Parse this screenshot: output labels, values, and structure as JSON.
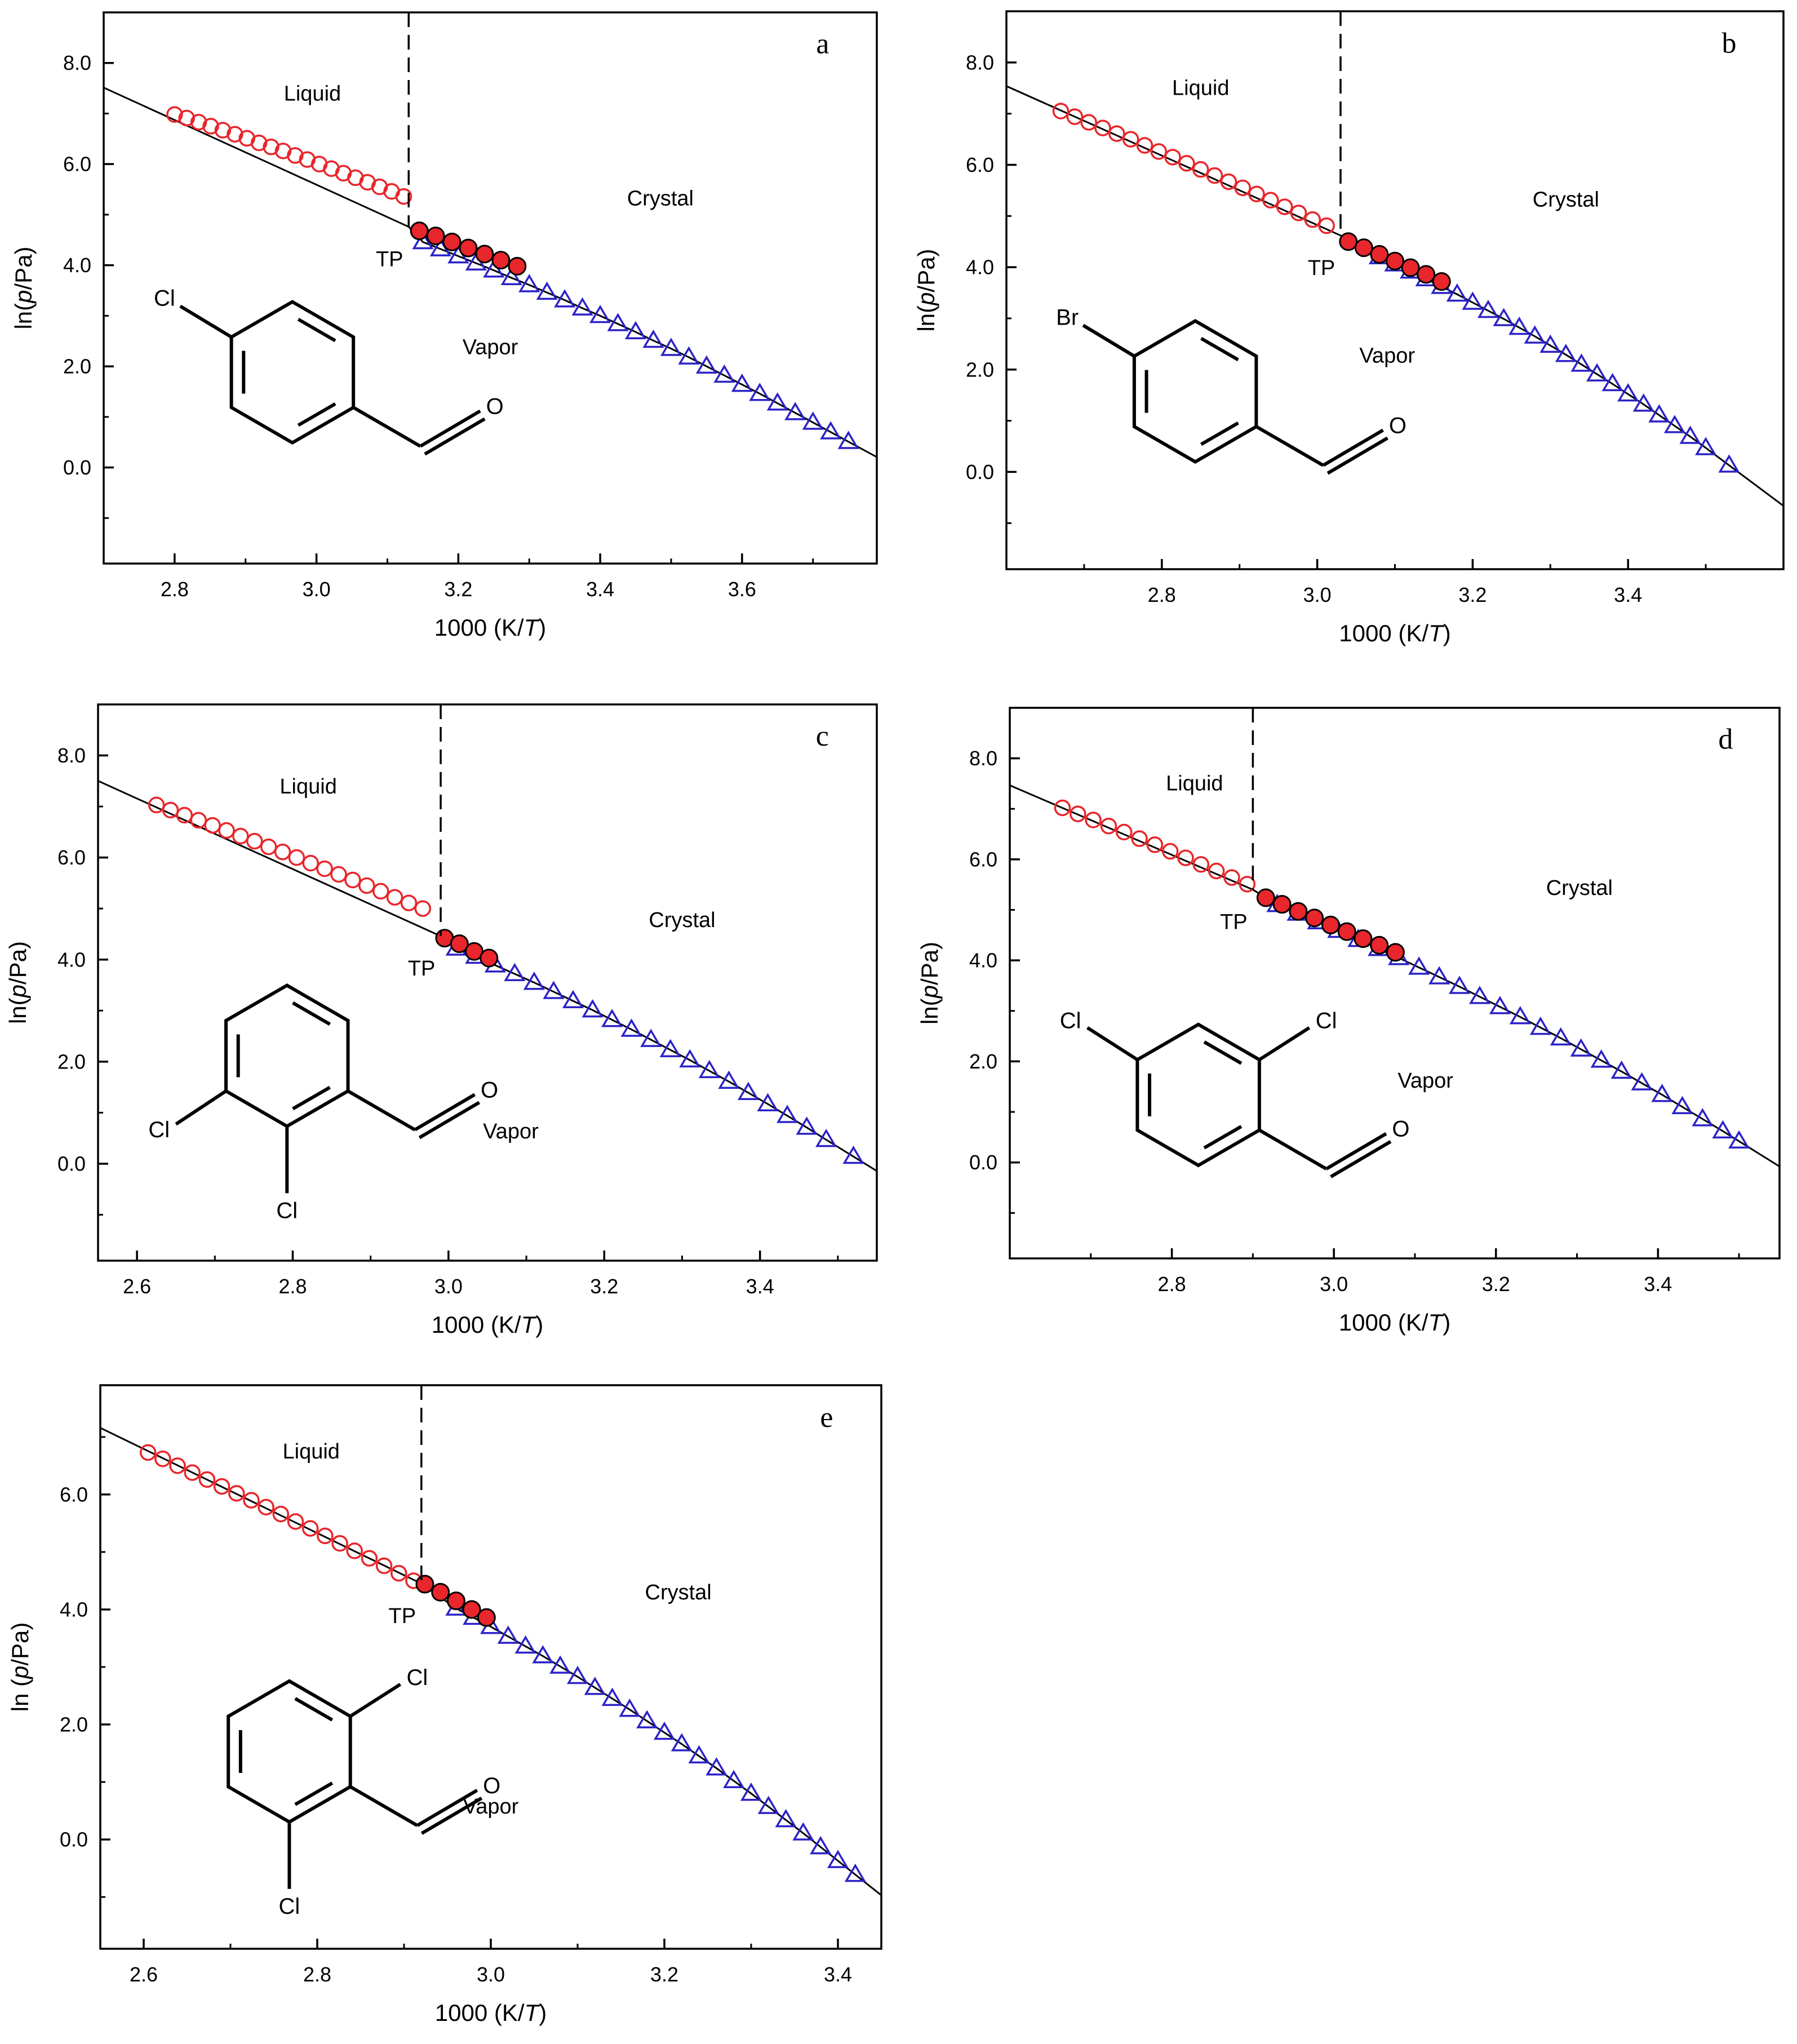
{
  "colors": {
    "liquid_points": "#e8262b",
    "crystal_points": "#e8262b",
    "vapor_points": "#2b22c8",
    "fit_line": "#000000",
    "frame": "#000000"
  },
  "chart_data": [
    {
      "type": "scatter",
      "panel": "a",
      "xlabel": "1000 (K/T)",
      "ylabel": "ln(p/Pa)",
      "xlim": [
        2.7,
        3.79
      ],
      "ylim": [
        -1.9,
        9.0
      ],
      "xticks": [
        2.8,
        3.0,
        3.2,
        3.4,
        3.6
      ],
      "yticks": [
        0.0,
        2.0,
        4.0,
        6.0,
        8.0
      ],
      "xtick_labels": [
        "2.8",
        "3.0",
        "3.2",
        "3.4",
        "3.6"
      ],
      "ytick_labels": [
        "0.0",
        "2.0",
        "4.0",
        "6.0",
        "8.0"
      ],
      "triple_point": {
        "label": "TP",
        "x": 3.13,
        "y": 4.76
      },
      "regions": {
        "liquid": "Liquid",
        "crystal": "Crystal",
        "vapor": "Vapor"
      },
      "molecule": {
        "type": "para",
        "labels": [
          "Cl",
          "O"
        ]
      },
      "series": [
        {
          "phase": "liquid",
          "marker": "open-circle",
          "x": [
            2.8,
            2.817,
            2.834,
            2.851,
            2.868,
            2.885,
            2.902,
            2.919,
            2.936,
            2.953,
            2.97,
            2.987,
            3.004,
            3.021,
            3.038,
            3.055,
            3.072,
            3.089,
            3.106,
            3.123
          ],
          "y": [
            6.98,
            6.91,
            6.83,
            6.75,
            6.67,
            6.59,
            6.51,
            6.42,
            6.34,
            6.26,
            6.17,
            6.09,
            6.0,
            5.91,
            5.82,
            5.73,
            5.64,
            5.55,
            5.46,
            5.36
          ]
        },
        {
          "phase": "crystal",
          "marker": "filled-circle",
          "x": [
            3.145,
            3.168,
            3.191,
            3.214,
            3.237,
            3.26,
            3.283
          ],
          "y": [
            4.68,
            4.58,
            4.46,
            4.34,
            4.22,
            4.1,
            3.98
          ]
        },
        {
          "phase": "vapor",
          "marker": "open-triangle",
          "x": [
            3.15,
            3.175,
            3.2,
            3.225,
            3.25,
            3.275,
            3.3,
            3.325,
            3.35,
            3.375,
            3.4,
            3.425,
            3.45,
            3.475,
            3.5,
            3.525,
            3.55,
            3.575,
            3.6,
            3.625,
            3.65,
            3.675,
            3.7,
            3.725,
            3.75
          ],
          "y": [
            4.46,
            4.32,
            4.18,
            4.04,
            3.9,
            3.75,
            3.61,
            3.46,
            3.31,
            3.15,
            3.0,
            2.84,
            2.68,
            2.51,
            2.35,
            2.18,
            2.0,
            1.82,
            1.64,
            1.46,
            1.27,
            1.08,
            0.89,
            0.7,
            0.51
          ]
        }
      ]
    },
    {
      "type": "scatter",
      "panel": "b",
      "xlabel": "1000 (K/T)",
      "ylabel": "ln(p/Pa)",
      "xlim": [
        2.6,
        3.6
      ],
      "ylim": [
        -1.9,
        9.0
      ],
      "xticks": [
        2.8,
        3.0,
        3.2,
        3.4
      ],
      "yticks": [
        0.0,
        2.0,
        4.0,
        6.0,
        8.0
      ],
      "xtick_labels": [
        "2.8",
        "3.0",
        "3.2",
        "3.4"
      ],
      "ytick_labels": [
        "0.0",
        "2.0",
        "4.0",
        "6.0",
        "8.0"
      ],
      "triple_point": {
        "label": "TP",
        "x": 3.03,
        "y": 4.62
      },
      "regions": {
        "liquid": "Liquid",
        "crystal": "Crystal",
        "vapor": "Vapor"
      },
      "molecule": {
        "type": "para",
        "labels": [
          "Br",
          "O"
        ]
      },
      "series": [
        {
          "phase": "liquid",
          "marker": "open-circle",
          "x": [
            2.67,
            2.688,
            2.706,
            2.724,
            2.742,
            2.76,
            2.778,
            2.796,
            2.814,
            2.832,
            2.85,
            2.868,
            2.886,
            2.904,
            2.922,
            2.94,
            2.958,
            2.976,
            2.994,
            3.012
          ],
          "y": [
            7.05,
            6.94,
            6.83,
            6.72,
            6.61,
            6.5,
            6.38,
            6.26,
            6.15,
            6.03,
            5.91,
            5.79,
            5.67,
            5.55,
            5.43,
            5.31,
            5.18,
            5.06,
            4.93,
            4.81
          ]
        },
        {
          "phase": "crystal",
          "marker": "filled-circle",
          "x": [
            3.04,
            3.06,
            3.08,
            3.1,
            3.12,
            3.14,
            3.16
          ],
          "y": [
            4.5,
            4.38,
            4.25,
            4.12,
            3.99,
            3.86,
            3.72
          ]
        },
        {
          "phase": "vapor",
          "marker": "open-triangle",
          "x": [
            3.08,
            3.1,
            3.12,
            3.14,
            3.16,
            3.18,
            3.2,
            3.22,
            3.24,
            3.26,
            3.28,
            3.3,
            3.32,
            3.34,
            3.36,
            3.38,
            3.4,
            3.42,
            3.44,
            3.46,
            3.48,
            3.5,
            3.53
          ],
          "y": [
            4.2,
            4.06,
            3.92,
            3.77,
            3.62,
            3.47,
            3.31,
            3.15,
            2.99,
            2.82,
            2.65,
            2.47,
            2.29,
            2.1,
            1.91,
            1.72,
            1.52,
            1.32,
            1.11,
            0.9,
            0.69,
            0.47,
            0.13
          ]
        }
      ]
    },
    {
      "type": "scatter",
      "panel": "c",
      "xlabel": "1000 (K/T)",
      "ylabel": "ln(p/Pa)",
      "xlim": [
        2.55,
        3.55
      ],
      "ylim": [
        -1.9,
        9.0
      ],
      "xticks": [
        2.6,
        2.8,
        3.0,
        3.2,
        3.4
      ],
      "yticks": [
        0.0,
        2.0,
        4.0,
        6.0,
        8.0
      ],
      "xtick_labels": [
        "2.6",
        "2.8",
        "3.0",
        "3.2",
        "3.4"
      ],
      "ytick_labels": [
        "0.0",
        "2.0",
        "4.0",
        "6.0",
        "8.0"
      ],
      "triple_point": {
        "label": "TP",
        "x": 2.99,
        "y": 4.46
      },
      "regions": {
        "liquid": "Liquid",
        "crystal": "Crystal",
        "vapor": "Vapor"
      },
      "molecule": {
        "type": "ortho-meta",
        "labels": [
          "Cl",
          "Cl",
          "O"
        ]
      },
      "series": [
        {
          "phase": "liquid",
          "marker": "open-circle",
          "x": [
            2.625,
            2.643,
            2.661,
            2.679,
            2.697,
            2.715,
            2.733,
            2.751,
            2.769,
            2.787,
            2.805,
            2.823,
            2.841,
            2.859,
            2.877,
            2.895,
            2.913,
            2.931,
            2.949,
            2.967
          ],
          "y": [
            7.03,
            6.93,
            6.83,
            6.73,
            6.63,
            6.53,
            6.42,
            6.32,
            6.21,
            6.11,
            6.0,
            5.89,
            5.78,
            5.67,
            5.56,
            5.45,
            5.34,
            5.22,
            5.11,
            5.0
          ]
        },
        {
          "phase": "crystal",
          "marker": "filled-circle",
          "x": [
            2.995,
            3.014,
            3.033,
            3.052
          ],
          "y": [
            4.42,
            4.31,
            4.16,
            4.03
          ]
        },
        {
          "phase": "vapor",
          "marker": "open-triangle",
          "x": [
            3.01,
            3.035,
            3.06,
            3.085,
            3.11,
            3.135,
            3.16,
            3.185,
            3.21,
            3.235,
            3.26,
            3.285,
            3.31,
            3.335,
            3.36,
            3.385,
            3.41,
            3.435,
            3.46,
            3.485,
            3.52
          ],
          "y": [
            4.22,
            4.06,
            3.89,
            3.72,
            3.55,
            3.37,
            3.19,
            3.01,
            2.82,
            2.63,
            2.43,
            2.23,
            2.03,
            1.82,
            1.61,
            1.39,
            1.17,
            0.94,
            0.71,
            0.47,
            0.14
          ]
        }
      ]
    },
    {
      "type": "scatter",
      "panel": "d",
      "xlabel": "1000 (K/T)",
      "ylabel": "ln(p/Pa)",
      "xlim": [
        2.6,
        3.55
      ],
      "ylim": [
        -1.9,
        9.0
      ],
      "xticks": [
        2.8,
        3.0,
        3.2,
        3.4
      ],
      "yticks": [
        0.0,
        2.0,
        4.0,
        6.0,
        8.0
      ],
      "xtick_labels": [
        "2.8",
        "3.0",
        "3.2",
        "3.4"
      ],
      "ytick_labels": [
        "0.0",
        "2.0",
        "4.0",
        "6.0",
        "8.0"
      ],
      "triple_point": {
        "label": "TP",
        "x": 2.9,
        "y": 5.4
      },
      "regions": {
        "liquid": "Liquid",
        "crystal": "Crystal",
        "vapor": "Vapor"
      },
      "molecule": {
        "type": "ortho-para",
        "labels": [
          "Cl",
          "Cl",
          "O"
        ]
      },
      "series": [
        {
          "phase": "liquid",
          "marker": "open-circle",
          "x": [
            2.665,
            2.684,
            2.703,
            2.722,
            2.741,
            2.76,
            2.779,
            2.798,
            2.817,
            2.836,
            2.855,
            2.874,
            2.893
          ],
          "y": [
            7.02,
            6.9,
            6.78,
            6.66,
            6.54,
            6.41,
            6.29,
            6.16,
            6.03,
            5.9,
            5.77,
            5.64,
            5.51
          ]
        },
        {
          "phase": "crystal",
          "marker": "filled-circle",
          "x": [
            2.916,
            2.936,
            2.956,
            2.976,
            2.996,
            3.016,
            3.036,
            3.056,
            3.076
          ],
          "y": [
            5.24,
            5.11,
            4.97,
            4.84,
            4.7,
            4.57,
            4.43,
            4.3,
            4.16
          ]
        },
        {
          "phase": "vapor",
          "marker": "open-triangle",
          "x": [
            2.93,
            2.955,
            2.98,
            3.005,
            3.03,
            3.055,
            3.08,
            3.105,
            3.13,
            3.155,
            3.18,
            3.205,
            3.23,
            3.255,
            3.28,
            3.305,
            3.33,
            3.355,
            3.38,
            3.405,
            3.43,
            3.455,
            3.48,
            3.5
          ],
          "y": [
            5.1,
            4.93,
            4.76,
            4.59,
            4.41,
            4.23,
            4.05,
            3.86,
            3.67,
            3.48,
            3.28,
            3.08,
            2.88,
            2.67,
            2.46,
            2.24,
            2.02,
            1.8,
            1.57,
            1.34,
            1.1,
            0.86,
            0.62,
            0.42
          ]
        }
      ]
    },
    {
      "type": "scatter",
      "panel": "e",
      "xlabel": "1000 (K/T)",
      "ylabel": "ln (p/Pa)",
      "xlim": [
        2.55,
        3.45
      ],
      "ylim": [
        -1.9,
        7.9
      ],
      "xticks": [
        2.6,
        2.8,
        3.0,
        3.2,
        3.4
      ],
      "yticks": [
        0.0,
        2.0,
        4.0,
        6.0
      ],
      "xtick_labels": [
        "2.6",
        "2.8",
        "3.0",
        "3.2",
        "3.4"
      ],
      "ytick_labels": [
        "0.0",
        "2.0",
        "4.0",
        "6.0"
      ],
      "triple_point": {
        "label": "TP",
        "x": 2.92,
        "y": 4.45
      },
      "regions": {
        "liquid": "Liquid",
        "crystal": "Crystal",
        "vapor": "Vapor"
      },
      "molecule": {
        "type": "di-ortho",
        "labels": [
          "Cl",
          "Cl",
          "O"
        ]
      },
      "series": [
        {
          "phase": "liquid",
          "marker": "open-circle",
          "x": [
            2.605,
            2.622,
            2.639,
            2.656,
            2.673,
            2.69,
            2.707,
            2.724,
            2.741,
            2.758,
            2.775,
            2.792,
            2.809,
            2.826,
            2.843,
            2.86,
            2.877,
            2.894,
            2.911
          ],
          "y": [
            6.73,
            6.62,
            6.5,
            6.38,
            6.26,
            6.14,
            6.02,
            5.9,
            5.78,
            5.66,
            5.53,
            5.41,
            5.28,
            5.15,
            5.02,
            4.89,
            4.76,
            4.63,
            4.5
          ]
        },
        {
          "phase": "crystal",
          "marker": "filled-circle",
          "x": [
            2.924,
            2.942,
            2.96,
            2.978,
            2.995
          ],
          "y": [
            4.44,
            4.3,
            4.15,
            4.0,
            3.86
          ]
        },
        {
          "phase": "vapor",
          "marker": "open-triangle",
          "x": [
            2.96,
            2.98,
            3.0,
            3.02,
            3.04,
            3.06,
            3.08,
            3.1,
            3.12,
            3.14,
            3.16,
            3.18,
            3.2,
            3.22,
            3.24,
            3.26,
            3.28,
            3.3,
            3.32,
            3.34,
            3.36,
            3.38,
            3.4,
            3.42
          ],
          "y": [
            4.02,
            3.86,
            3.7,
            3.53,
            3.36,
            3.19,
            3.01,
            2.83,
            2.64,
            2.45,
            2.26,
            2.06,
            1.86,
            1.66,
            1.45,
            1.24,
            1.02,
            0.8,
            0.57,
            0.34,
            0.11,
            -0.13,
            -0.37,
            -0.61
          ]
        }
      ]
    }
  ]
}
